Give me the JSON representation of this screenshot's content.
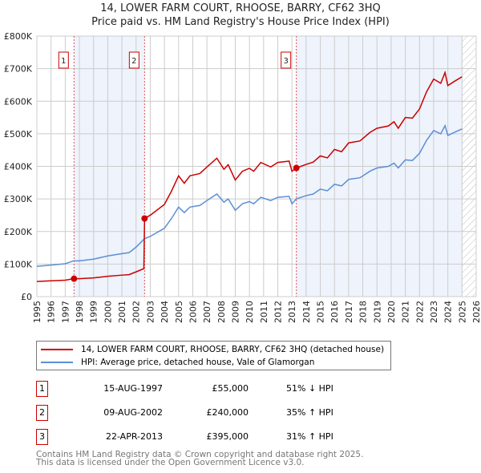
{
  "chart_data": {
    "type": "line",
    "title": "14, LOWER FARM COURT, RHOOSE, BARRY, CF62 3HQ",
    "subtitle": "Price paid vs. HM Land Registry's House Price Index (HPI)",
    "xlim": [
      1995,
      2026
    ],
    "ylim": [
      0,
      800000
    ],
    "x_ticks": [
      "1995",
      "1996",
      "1997",
      "1998",
      "1999",
      "2000",
      "2001",
      "2002",
      "2003",
      "2004",
      "2005",
      "2006",
      "2007",
      "2008",
      "2009",
      "2010",
      "2011",
      "2012",
      "2013",
      "2014",
      "2015",
      "2016",
      "2017",
      "2018",
      "2019",
      "2020",
      "2021",
      "2022",
      "2023",
      "2024",
      "2025",
      "2026"
    ],
    "y_ticks": [
      {
        "v": 0,
        "label": "£0"
      },
      {
        "v": 100000,
        "label": "£100K"
      },
      {
        "v": 200000,
        "label": "£200K"
      },
      {
        "v": 300000,
        "label": "£300K"
      },
      {
        "v": 400000,
        "label": "£400K"
      },
      {
        "v": 500000,
        "label": "£500K"
      },
      {
        "v": 600000,
        "label": "£600K"
      },
      {
        "v": 700000,
        "label": "£700K"
      },
      {
        "v": 800000,
        "label": "£800K"
      }
    ],
    "grid": true,
    "series": [
      {
        "name": "14, LOWER FARM COURT, RHOOSE, BARRY, CF62 3HQ (detached house)",
        "color": "#cc0000",
        "x": [
          1995,
          1996,
          1997,
          1997.6,
          1998,
          1999,
          2000,
          2001,
          2001.5,
          2002,
          2002.55,
          2002.6,
          2003,
          2004,
          2004.5,
          2005,
          2005.4,
          2005.8,
          2006.5,
          2007,
          2007.7,
          2008.2,
          2008.5,
          2009,
          2009.5,
          2010,
          2010.3,
          2010.8,
          2011.5,
          2012,
          2012.8,
          2013.0,
          2013.3,
          2014,
          2014.5,
          2015,
          2015.5,
          2016,
          2016.5,
          2017,
          2017.8,
          2018.5,
          2019,
          2019.8,
          2020.2,
          2020.5,
          2021,
          2021.5,
          2022,
          2022.5,
          2023,
          2023.5,
          2023.8,
          2024,
          2024.5,
          2025
        ],
        "y": [
          46500,
          48500,
          50500,
          55000,
          55000,
          57500,
          62500,
          66000,
          67500,
          76000,
          86000,
          240000,
          250000,
          283000,
          324000,
          371000,
          348000,
          371000,
          378000,
          398000,
          425000,
          391000,
          405000,
          358000,
          385000,
          394000,
          385000,
          412000,
          398000,
          412000,
          416000,
          385000,
          395000,
          406000,
          413000,
          432000,
          426000,
          452000,
          445000,
          472000,
          478000,
          504000,
          517000,
          524000,
          537000,
          517000,
          550000,
          548000,
          576000,
          629000,
          668000,
          655000,
          688000,
          648000,
          662000,
          675000
        ]
      },
      {
        "name": "HPI: Average price, detached house, Vale of Glamorgan",
        "color": "#5b8fd4",
        "x": [
          1995,
          1996,
          1997,
          1997.6,
          1998,
          1999,
          2000,
          2001,
          2001.5,
          2002,
          2002.6,
          2003,
          2004,
          2004.5,
          2005,
          2005.4,
          2005.8,
          2006.5,
          2007,
          2007.7,
          2008.2,
          2008.5,
          2009,
          2009.5,
          2010,
          2010.3,
          2010.8,
          2011.5,
          2012,
          2012.8,
          2013.0,
          2013.3,
          2014,
          2014.5,
          2015,
          2015.5,
          2016,
          2016.5,
          2017,
          2017.8,
          2018.5,
          2019,
          2019.8,
          2020.2,
          2020.5,
          2021,
          2021.5,
          2022,
          2022.5,
          2023,
          2023.5,
          2023.8,
          2024,
          2024.5,
          2025
        ],
        "y": [
          93000,
          97000,
          101000,
          110000,
          110000,
          115000,
          125000,
          132000,
          135000,
          152000,
          178000,
          185000,
          210000,
          240000,
          275000,
          258000,
          275000,
          280000,
          295000,
          315000,
          290000,
          300000,
          265000,
          285000,
          292000,
          285000,
          305000,
          295000,
          305000,
          308000,
          285000,
          300000,
          310000,
          315000,
          330000,
          325000,
          345000,
          340000,
          360000,
          365000,
          385000,
          395000,
          400000,
          410000,
          395000,
          420000,
          418000,
          440000,
          480000,
          510000,
          500000,
          525000,
          495000,
          505000,
          515000
        ]
      }
    ],
    "sales": [
      {
        "n": "1",
        "x": 1997.62,
        "y": 55000,
        "date": "15-AUG-1997",
        "price": "£55,000",
        "hpi": "51% ↓ HPI"
      },
      {
        "n": "2",
        "x": 2002.6,
        "y": 240000,
        "date": "09-AUG-2002",
        "price": "£240,000",
        "hpi": "35% ↑ HPI"
      },
      {
        "n": "3",
        "x": 2013.31,
        "y": 395000,
        "date": "22-APR-2013",
        "price": "£395,000",
        "hpi": "31% ↑ HPI"
      }
    ],
    "shaded": [
      [
        1997.62,
        2002.6
      ],
      [
        2013.31,
        2025.0
      ]
    ],
    "forecast_start": 2025.0,
    "legend_position": "below"
  },
  "footer": [
    "Contains HM Land Registry data © Crown copyright and database right 2025.",
    "This data is licensed under the Open Government Licence v3.0."
  ]
}
